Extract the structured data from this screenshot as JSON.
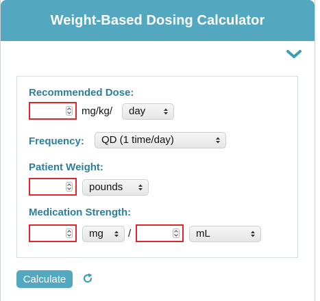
{
  "header": {
    "title": "Weight-Based Dosing Calculator"
  },
  "icons": {
    "collapse": "chevron-down-icon",
    "reset": "refresh-icon"
  },
  "dose": {
    "label": "Recommended Dose:",
    "value": "",
    "unit": "mg/kg/",
    "period_selected": "day"
  },
  "frequency": {
    "label": "Frequency:",
    "selected": "QD (1 time/day)"
  },
  "weight": {
    "label": "Patient Weight:",
    "value": "",
    "unit_selected": "pounds"
  },
  "strength": {
    "label": "Medication Strength:",
    "amount_value": "",
    "amount_unit_selected": "mg",
    "separator": "/",
    "volume_value": "",
    "volume_unit_selected": "mL"
  },
  "actions": {
    "calculate_label": "Calculate"
  },
  "colors": {
    "header_bg": "#53a8bf",
    "label_text": "#2d7f99",
    "invalid_border": "#e0252a",
    "button_bg": "#53a8bf"
  }
}
